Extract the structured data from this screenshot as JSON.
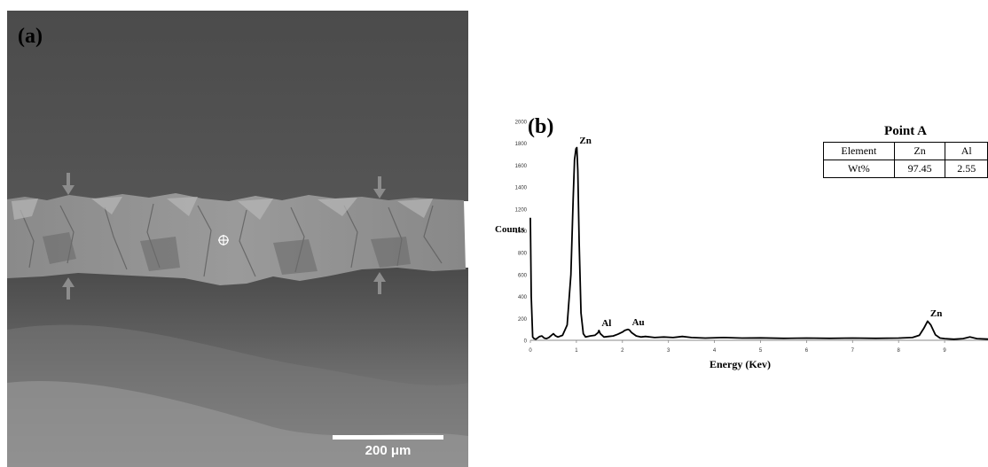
{
  "panel_a": {
    "label": "(a)",
    "scale_bar_label": "200 μm"
  },
  "panel_b": {
    "label": "(b)",
    "point_table": {
      "title": "Point A",
      "header_label": "Element",
      "elements": [
        "Zn",
        "Al"
      ],
      "row_label": "Wt%",
      "values": [
        "97.45",
        "2.55"
      ]
    }
  },
  "chart_data": {
    "type": "line",
    "title": "",
    "xlabel": "Energy (Kev)",
    "ylabel": "Counts",
    "xlim": [
      0,
      10
    ],
    "ylim": [
      0,
      2000
    ],
    "x_ticks": [
      "0",
      "1",
      "2",
      "3",
      "4",
      "5",
      "6",
      "7",
      "8",
      "9",
      "1"
    ],
    "y_ticks": [
      "0",
      "200",
      "400",
      "600",
      "800",
      "1000",
      "1200",
      "1400",
      "1600",
      "1800",
      "2000"
    ],
    "grid": false,
    "legend": "none",
    "peaks": [
      {
        "label": "Zn",
        "x": 1.01,
        "y": 1760
      },
      {
        "label": "Al",
        "x": 1.49,
        "y": 90
      },
      {
        "label": "Au",
        "x": 2.15,
        "y": 100
      },
      {
        "label": "Zn",
        "x": 8.63,
        "y": 175
      }
    ],
    "series": [
      {
        "x": [
          0,
          0.02,
          0.05,
          0.08,
          0.12,
          0.2,
          0.25,
          0.3,
          0.35,
          0.4,
          0.5,
          0.55,
          0.6,
          0.7,
          0.8,
          0.88,
          0.93,
          0.96,
          0.99,
          1.01,
          1.03,
          1.06,
          1.1,
          1.15,
          1.2,
          1.3,
          1.4,
          1.47,
          1.49,
          1.52,
          1.6,
          1.7,
          1.8,
          1.9,
          2.0,
          2.05,
          2.12,
          2.15,
          2.2,
          2.3,
          2.4,
          2.5,
          2.7,
          2.9,
          3.1,
          3.3,
          3.5,
          3.8,
          4.2,
          4.6,
          5.0,
          5.5,
          6.0,
          6.5,
          7.0,
          7.5,
          8.0,
          8.3,
          8.45,
          8.55,
          8.63,
          8.7,
          8.8,
          8.9,
          9.0,
          9.2,
          9.4,
          9.55,
          9.7,
          10.0
        ],
        "y": [
          1120,
          400,
          30,
          15,
          10,
          35,
          40,
          20,
          15,
          25,
          60,
          40,
          30,
          45,
          140,
          600,
          1300,
          1650,
          1750,
          1760,
          1550,
          900,
          250,
          60,
          30,
          40,
          45,
          70,
          90,
          60,
          30,
          35,
          40,
          55,
          75,
          90,
          100,
          95,
          70,
          40,
          30,
          35,
          25,
          30,
          25,
          35,
          25,
          20,
          25,
          20,
          22,
          18,
          20,
          18,
          20,
          18,
          20,
          25,
          45,
          110,
          175,
          140,
          50,
          20,
          15,
          10,
          15,
          30,
          15,
          10
        ]
      }
    ]
  }
}
